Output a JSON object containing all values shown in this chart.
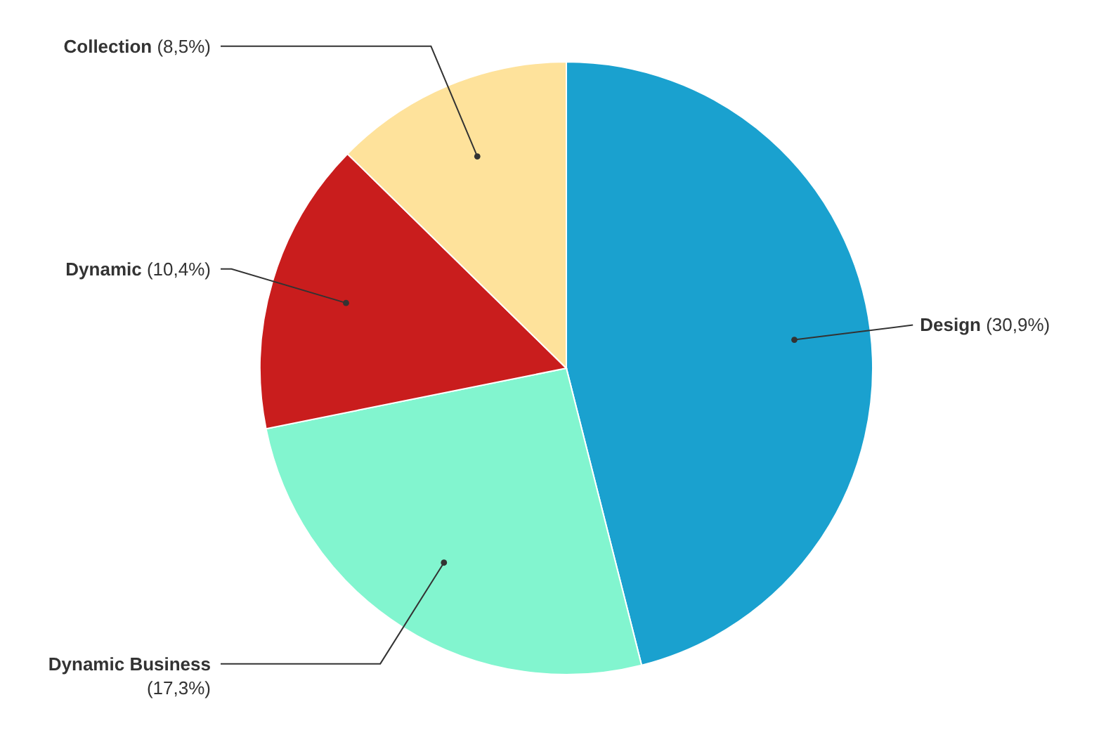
{
  "chart_data": {
    "type": "pie",
    "categories": [
      "Design",
      "Dynamic Business",
      "Dynamic",
      "Collection"
    ],
    "values": [
      30.9,
      17.3,
      10.4,
      8.5
    ],
    "value_labels": [
      "(30,9%)",
      "(17,3%)",
      "(10,4%)",
      "(8,5%)"
    ],
    "colors": [
      "#1aa1cf",
      "#82f5cf",
      "#c91d1d",
      "#fee29b"
    ]
  }
}
